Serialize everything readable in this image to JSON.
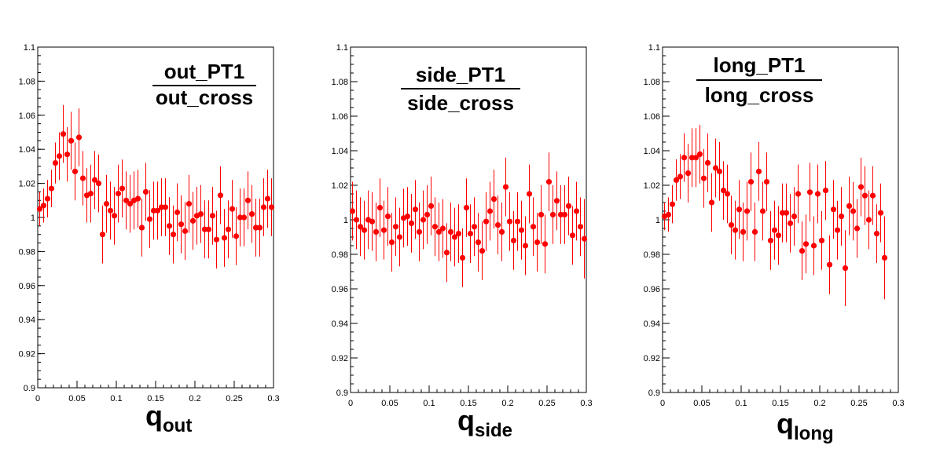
{
  "chart_data": [
    {
      "type": "scatter",
      "numerator": "out_PT1",
      "denominator": "out_cross",
      "xlabel_main": "q",
      "xlabel_sub": "out",
      "xlim": [
        0,
        0.3
      ],
      "ylim": [
        0.9,
        1.1
      ],
      "x_ticks": [
        "0",
        "0.05",
        "0.1",
        "0.15",
        "0.2",
        "0.25",
        "0.3"
      ],
      "y_ticks": [
        "0.9",
        "0.92",
        "0.94",
        "0.96",
        "0.98",
        "1",
        "1.02",
        "1.04",
        "1.06",
        "1.08",
        "1.1"
      ],
      "marker_color": "#ff0000",
      "points": [
        {
          "x": 0.0025,
          "y": 1.005,
          "err": 0.01
        },
        {
          "x": 0.0075,
          "y": 1.007,
          "err": 0.01
        },
        {
          "x": 0.0125,
          "y": 1.011,
          "err": 0.011
        },
        {
          "x": 0.0175,
          "y": 1.017,
          "err": 0.011
        },
        {
          "x": 0.0225,
          "y": 1.032,
          "err": 0.012
        },
        {
          "x": 0.0275,
          "y": 1.036,
          "err": 0.014
        },
        {
          "x": 0.0325,
          "y": 1.049,
          "err": 0.017
        },
        {
          "x": 0.0375,
          "y": 1.037,
          "err": 0.016
        },
        {
          "x": 0.0425,
          "y": 1.045,
          "err": 0.017
        },
        {
          "x": 0.0475,
          "y": 1.027,
          "err": 0.017
        },
        {
          "x": 0.0525,
          "y": 1.047,
          "err": 0.017
        },
        {
          "x": 0.0575,
          "y": 1.023,
          "err": 0.016
        },
        {
          "x": 0.0625,
          "y": 1.013,
          "err": 0.016
        },
        {
          "x": 0.0675,
          "y": 1.014,
          "err": 0.017
        },
        {
          "x": 0.0725,
          "y": 1.022,
          "err": 0.017
        },
        {
          "x": 0.0775,
          "y": 1.02,
          "err": 0.017
        },
        {
          "x": 0.0825,
          "y": 0.99,
          "err": 0.017
        },
        {
          "x": 0.0875,
          "y": 1.008,
          "err": 0.017
        },
        {
          "x": 0.0925,
          "y": 1.004,
          "err": 0.017
        },
        {
          "x": 0.0975,
          "y": 1.001,
          "err": 0.017
        },
        {
          "x": 0.1025,
          "y": 1.014,
          "err": 0.017
        },
        {
          "x": 0.1075,
          "y": 1.017,
          "err": 0.017
        },
        {
          "x": 0.1125,
          "y": 1.01,
          "err": 0.017
        },
        {
          "x": 0.1175,
          "y": 1.008,
          "err": 0.017
        },
        {
          "x": 0.1225,
          "y": 1.01,
          "err": 0.017
        },
        {
          "x": 0.1275,
          "y": 1.011,
          "err": 0.017
        },
        {
          "x": 0.1325,
          "y": 0.994,
          "err": 0.017
        },
        {
          "x": 0.1375,
          "y": 1.015,
          "err": 0.017
        },
        {
          "x": 0.1425,
          "y": 0.999,
          "err": 0.017
        },
        {
          "x": 0.1475,
          "y": 1.004,
          "err": 0.017
        },
        {
          "x": 0.1525,
          "y": 1.004,
          "err": 0.017
        },
        {
          "x": 0.1575,
          "y": 1.006,
          "err": 0.017
        },
        {
          "x": 0.1625,
          "y": 1.006,
          "err": 0.017
        },
        {
          "x": 0.1675,
          "y": 0.995,
          "err": 0.017
        },
        {
          "x": 0.1725,
          "y": 0.99,
          "err": 0.017
        },
        {
          "x": 0.1775,
          "y": 1.003,
          "err": 0.017
        },
        {
          "x": 0.1825,
          "y": 0.996,
          "err": 0.017
        },
        {
          "x": 0.1875,
          "y": 0.992,
          "err": 0.017
        },
        {
          "x": 0.1925,
          "y": 1.008,
          "err": 0.017
        },
        {
          "x": 0.1975,
          "y": 0.998,
          "err": 0.017
        },
        {
          "x": 0.2025,
          "y": 1.001,
          "err": 0.017
        },
        {
          "x": 0.2075,
          "y": 1.002,
          "err": 0.017
        },
        {
          "x": 0.2125,
          "y": 0.993,
          "err": 0.017
        },
        {
          "x": 0.2175,
          "y": 0.993,
          "err": 0.017
        },
        {
          "x": 0.2225,
          "y": 1.001,
          "err": 0.017
        },
        {
          "x": 0.2275,
          "y": 0.987,
          "err": 0.017
        },
        {
          "x": 0.2325,
          "y": 1.013,
          "err": 0.017
        },
        {
          "x": 0.2375,
          "y": 0.988,
          "err": 0.017
        },
        {
          "x": 0.2425,
          "y": 0.993,
          "err": 0.017
        },
        {
          "x": 0.2475,
          "y": 1.005,
          "err": 0.017
        },
        {
          "x": 0.2525,
          "y": 0.989,
          "err": 0.017
        },
        {
          "x": 0.2575,
          "y": 1.0,
          "err": 0.017
        },
        {
          "x": 0.2625,
          "y": 1.0,
          "err": 0.017
        },
        {
          "x": 0.2675,
          "y": 1.01,
          "err": 0.017
        },
        {
          "x": 0.2725,
          "y": 1.002,
          "err": 0.017
        },
        {
          "x": 0.2775,
          "y": 0.994,
          "err": 0.017
        },
        {
          "x": 0.2825,
          "y": 0.994,
          "err": 0.017
        },
        {
          "x": 0.2875,
          "y": 1.006,
          "err": 0.017
        },
        {
          "x": 0.2925,
          "y": 1.011,
          "err": 0.017
        },
        {
          "x": 0.2975,
          "y": 1.006,
          "err": 0.017
        }
      ]
    },
    {
      "type": "scatter",
      "numerator": "side_PT1",
      "denominator": "side_cross",
      "xlabel_main": "q",
      "xlabel_sub": "side",
      "xlim": [
        0,
        0.3
      ],
      "ylim": [
        0.9,
        1.1
      ],
      "x_ticks": [
        "0",
        "0.05",
        "0.1",
        "0.15",
        "0.2",
        "0.25",
        "0.3"
      ],
      "y_ticks": [
        "0.9",
        "0.92",
        "0.94",
        "0.96",
        "0.98",
        "1",
        "1.02",
        "1.04",
        "1.06",
        "1.08",
        "1.1"
      ],
      "marker_color": "#ff0000",
      "points": [
        {
          "x": 0.0025,
          "y": 1.005,
          "err": 0.017
        },
        {
          "x": 0.0075,
          "y": 1.0,
          "err": 0.017
        },
        {
          "x": 0.0125,
          "y": 0.996,
          "err": 0.017
        },
        {
          "x": 0.0175,
          "y": 0.994,
          "err": 0.017
        },
        {
          "x": 0.0225,
          "y": 1.0,
          "err": 0.017
        },
        {
          "x": 0.0275,
          "y": 0.999,
          "err": 0.017
        },
        {
          "x": 0.0325,
          "y": 0.993,
          "err": 0.017
        },
        {
          "x": 0.0375,
          "y": 1.007,
          "err": 0.017
        },
        {
          "x": 0.0425,
          "y": 0.994,
          "err": 0.017
        },
        {
          "x": 0.0475,
          "y": 1.002,
          "err": 0.017
        },
        {
          "x": 0.0525,
          "y": 0.987,
          "err": 0.017
        },
        {
          "x": 0.0575,
          "y": 0.996,
          "err": 0.017
        },
        {
          "x": 0.0625,
          "y": 0.99,
          "err": 0.017
        },
        {
          "x": 0.0675,
          "y": 1.001,
          "err": 0.017
        },
        {
          "x": 0.0725,
          "y": 1.002,
          "err": 0.017
        },
        {
          "x": 0.0775,
          "y": 0.998,
          "err": 0.017
        },
        {
          "x": 0.0825,
          "y": 1.006,
          "err": 0.017
        },
        {
          "x": 0.0875,
          "y": 0.993,
          "err": 0.017
        },
        {
          "x": 0.0925,
          "y": 1.0,
          "err": 0.017
        },
        {
          "x": 0.0975,
          "y": 1.003,
          "err": 0.017
        },
        {
          "x": 0.1025,
          "y": 1.008,
          "err": 0.017
        },
        {
          "x": 0.1075,
          "y": 0.996,
          "err": 0.017
        },
        {
          "x": 0.1125,
          "y": 0.993,
          "err": 0.017
        },
        {
          "x": 0.1175,
          "y": 0.995,
          "err": 0.017
        },
        {
          "x": 0.1225,
          "y": 0.981,
          "err": 0.017
        },
        {
          "x": 0.1275,
          "y": 0.993,
          "err": 0.017
        },
        {
          "x": 0.1325,
          "y": 0.99,
          "err": 0.017
        },
        {
          "x": 0.1375,
          "y": 0.992,
          "err": 0.017
        },
        {
          "x": 0.1425,
          "y": 0.978,
          "err": 0.017
        },
        {
          "x": 0.1475,
          "y": 1.007,
          "err": 0.017
        },
        {
          "x": 0.1525,
          "y": 0.992,
          "err": 0.017
        },
        {
          "x": 0.1575,
          "y": 0.996,
          "err": 0.017
        },
        {
          "x": 0.1625,
          "y": 0.987,
          "err": 0.017
        },
        {
          "x": 0.1675,
          "y": 0.982,
          "err": 0.017
        },
        {
          "x": 0.1725,
          "y": 0.999,
          "err": 0.017
        },
        {
          "x": 0.1775,
          "y": 1.005,
          "err": 0.017
        },
        {
          "x": 0.1825,
          "y": 1.012,
          "err": 0.017
        },
        {
          "x": 0.1875,
          "y": 0.997,
          "err": 0.017
        },
        {
          "x": 0.1925,
          "y": 0.993,
          "err": 0.017
        },
        {
          "x": 0.1975,
          "y": 1.019,
          "err": 0.017
        },
        {
          "x": 0.2025,
          "y": 0.999,
          "err": 0.017
        },
        {
          "x": 0.2075,
          "y": 0.988,
          "err": 0.017
        },
        {
          "x": 0.2125,
          "y": 0.999,
          "err": 0.017
        },
        {
          "x": 0.2175,
          "y": 0.994,
          "err": 0.017
        },
        {
          "x": 0.2225,
          "y": 0.985,
          "err": 0.017
        },
        {
          "x": 0.2275,
          "y": 1.015,
          "err": 0.017
        },
        {
          "x": 0.2325,
          "y": 0.996,
          "err": 0.017
        },
        {
          "x": 0.2375,
          "y": 0.987,
          "err": 0.017
        },
        {
          "x": 0.2425,
          "y": 1.003,
          "err": 0.017
        },
        {
          "x": 0.2475,
          "y": 0.986,
          "err": 0.017
        },
        {
          "x": 0.2525,
          "y": 1.022,
          "err": 0.017
        },
        {
          "x": 0.2575,
          "y": 1.003,
          "err": 0.017
        },
        {
          "x": 0.2625,
          "y": 1.011,
          "err": 0.017
        },
        {
          "x": 0.2675,
          "y": 1.003,
          "err": 0.017
        },
        {
          "x": 0.2725,
          "y": 1.003,
          "err": 0.017
        },
        {
          "x": 0.2775,
          "y": 1.008,
          "err": 0.017
        },
        {
          "x": 0.2825,
          "y": 0.991,
          "err": 0.017
        },
        {
          "x": 0.2875,
          "y": 1.005,
          "err": 0.017
        },
        {
          "x": 0.2925,
          "y": 0.996,
          "err": 0.017
        },
        {
          "x": 0.2975,
          "y": 0.989,
          "err": 0.023
        }
      ]
    },
    {
      "type": "scatter",
      "numerator": "long_PT1",
      "denominator": "long_cross",
      "xlabel_main": "q",
      "xlabel_sub": "long",
      "xlim": [
        0,
        0.3
      ],
      "ylim": [
        0.9,
        1.1
      ],
      "x_ticks": [
        "0",
        "0.05",
        "0.1",
        "0.15",
        "0.2",
        "0.25",
        "0.3"
      ],
      "y_ticks": [
        "0.9",
        "0.92",
        "0.94",
        "0.96",
        "0.98",
        "1",
        "1.02",
        "1.04",
        "1.06",
        "1.08",
        "1.1"
      ],
      "marker_color": "#ff0000",
      "points": [
        {
          "x": 0.0025,
          "y": 1.002,
          "err": 0.008
        },
        {
          "x": 0.0075,
          "y": 1.003,
          "err": 0.01
        },
        {
          "x": 0.0125,
          "y": 1.009,
          "err": 0.011
        },
        {
          "x": 0.0175,
          "y": 1.023,
          "err": 0.012
        },
        {
          "x": 0.0225,
          "y": 1.025,
          "err": 0.013
        },
        {
          "x": 0.0275,
          "y": 1.036,
          "err": 0.014
        },
        {
          "x": 0.0325,
          "y": 1.027,
          "err": 0.017
        },
        {
          "x": 0.0375,
          "y": 1.036,
          "err": 0.017
        },
        {
          "x": 0.0425,
          "y": 1.036,
          "err": 0.017
        },
        {
          "x": 0.0475,
          "y": 1.038,
          "err": 0.017
        },
        {
          "x": 0.0525,
          "y": 1.024,
          "err": 0.017
        },
        {
          "x": 0.0575,
          "y": 1.033,
          "err": 0.017
        },
        {
          "x": 0.0625,
          "y": 1.01,
          "err": 0.017
        },
        {
          "x": 0.0675,
          "y": 1.03,
          "err": 0.017
        },
        {
          "x": 0.0725,
          "y": 1.028,
          "err": 0.017
        },
        {
          "x": 0.0775,
          "y": 1.017,
          "err": 0.017
        },
        {
          "x": 0.0825,
          "y": 1.015,
          "err": 0.017
        },
        {
          "x": 0.0875,
          "y": 0.997,
          "err": 0.017
        },
        {
          "x": 0.0925,
          "y": 0.994,
          "err": 0.017
        },
        {
          "x": 0.0975,
          "y": 1.006,
          "err": 0.017
        },
        {
          "x": 0.1025,
          "y": 0.993,
          "err": 0.017
        },
        {
          "x": 0.1075,
          "y": 1.005,
          "err": 0.017
        },
        {
          "x": 0.1125,
          "y": 1.022,
          "err": 0.017
        },
        {
          "x": 0.1175,
          "y": 0.993,
          "err": 0.017
        },
        {
          "x": 0.1225,
          "y": 1.028,
          "err": 0.017
        },
        {
          "x": 0.1275,
          "y": 1.005,
          "err": 0.017
        },
        {
          "x": 0.1325,
          "y": 1.022,
          "err": 0.017
        },
        {
          "x": 0.1375,
          "y": 0.988,
          "err": 0.017
        },
        {
          "x": 0.1425,
          "y": 0.994,
          "err": 0.017
        },
        {
          "x": 0.1475,
          "y": 0.991,
          "err": 0.017
        },
        {
          "x": 0.1525,
          "y": 1.004,
          "err": 0.017
        },
        {
          "x": 0.1575,
          "y": 1.004,
          "err": 0.017
        },
        {
          "x": 0.1625,
          "y": 0.998,
          "err": 0.017
        },
        {
          "x": 0.1675,
          "y": 1.002,
          "err": 0.017
        },
        {
          "x": 0.1725,
          "y": 1.015,
          "err": 0.017
        },
        {
          "x": 0.1775,
          "y": 0.982,
          "err": 0.017
        },
        {
          "x": 0.1825,
          "y": 0.986,
          "err": 0.017
        },
        {
          "x": 0.1875,
          "y": 1.016,
          "err": 0.017
        },
        {
          "x": 0.1925,
          "y": 0.985,
          "err": 0.017
        },
        {
          "x": 0.1975,
          "y": 1.015,
          "err": 0.017
        },
        {
          "x": 0.2025,
          "y": 0.988,
          "err": 0.017
        },
        {
          "x": 0.2075,
          "y": 1.017,
          "err": 0.017
        },
        {
          "x": 0.2125,
          "y": 0.974,
          "err": 0.017
        },
        {
          "x": 0.2175,
          "y": 1.006,
          "err": 0.017
        },
        {
          "x": 0.2225,
          "y": 0.994,
          "err": 0.017
        },
        {
          "x": 0.2275,
          "y": 1.002,
          "err": 0.017
        },
        {
          "x": 0.2325,
          "y": 0.972,
          "err": 0.022
        },
        {
          "x": 0.2375,
          "y": 1.008,
          "err": 0.017
        },
        {
          "x": 0.2425,
          "y": 1.005,
          "err": 0.017
        },
        {
          "x": 0.2475,
          "y": 0.995,
          "err": 0.017
        },
        {
          "x": 0.2525,
          "y": 1.019,
          "err": 0.017
        },
        {
          "x": 0.2575,
          "y": 1.014,
          "err": 0.017
        },
        {
          "x": 0.2625,
          "y": 1.0,
          "err": 0.017
        },
        {
          "x": 0.2675,
          "y": 1.014,
          "err": 0.017
        },
        {
          "x": 0.2725,
          "y": 0.992,
          "err": 0.017
        },
        {
          "x": 0.2775,
          "y": 1.004,
          "err": 0.017
        },
        {
          "x": 0.2825,
          "y": 0.978,
          "err": 0.024
        }
      ]
    }
  ]
}
